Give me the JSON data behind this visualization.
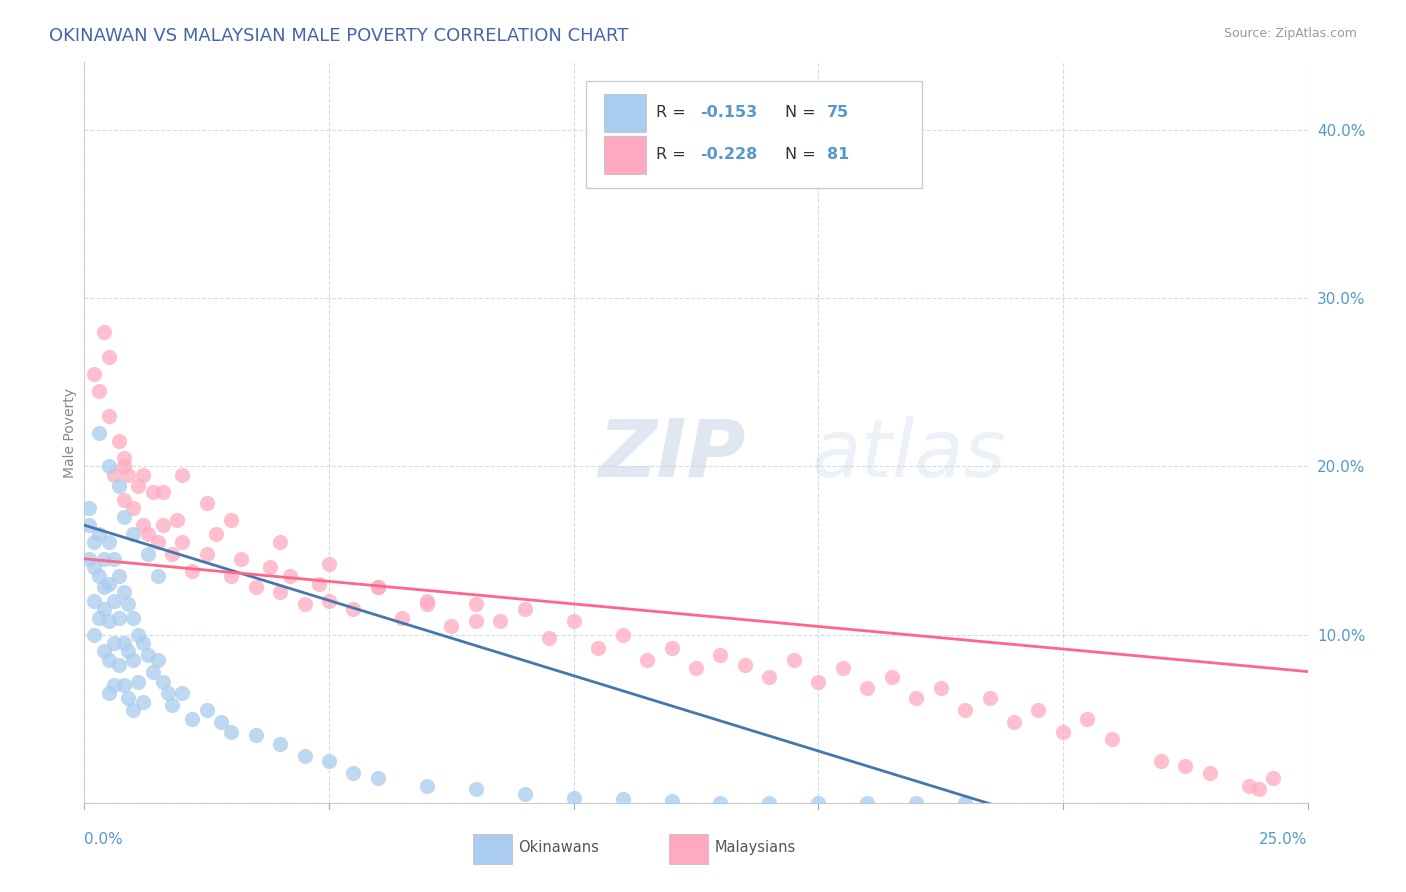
{
  "title": "OKINAWAN VS MALAYSIAN MALE POVERTY CORRELATION CHART",
  "source": "Source: ZipAtlas.com",
  "ylabel": "Male Poverty",
  "xlim": [
    0,
    0.25
  ],
  "ylim": [
    0.0,
    0.44
  ],
  "yticks": [
    0.0,
    0.1,
    0.2,
    0.3,
    0.4
  ],
  "ytick_labels": [
    "",
    "10.0%",
    "20.0%",
    "30.0%",
    "40.0%"
  ],
  "background_color": "#ffffff",
  "grid_color": "#d0dce8",
  "okinawan_color": "#aaccee",
  "okinawan_line_color": "#4477aa",
  "malaysian_color": "#ffaac0",
  "malaysian_line_color": "#ff6688",
  "R_okinawan": -0.153,
  "N_okinawan": 75,
  "R_malaysian": -0.228,
  "N_malaysian": 81,
  "ok_line_x0": 0.0,
  "ok_line_y0": 0.165,
  "ok_line_x1": 0.19,
  "ok_line_y1": -0.005,
  "mal_line_x0": 0.0,
  "mal_line_y0": 0.145,
  "mal_line_x1": 0.25,
  "mal_line_y1": 0.078,
  "okinawan_x": [
    0.001,
    0.001,
    0.001,
    0.002,
    0.002,
    0.002,
    0.002,
    0.003,
    0.003,
    0.003,
    0.004,
    0.004,
    0.004,
    0.004,
    0.005,
    0.005,
    0.005,
    0.005,
    0.005,
    0.006,
    0.006,
    0.006,
    0.006,
    0.007,
    0.007,
    0.007,
    0.008,
    0.008,
    0.008,
    0.009,
    0.009,
    0.009,
    0.01,
    0.01,
    0.01,
    0.011,
    0.011,
    0.012,
    0.012,
    0.013,
    0.014,
    0.015,
    0.016,
    0.017,
    0.018,
    0.02,
    0.022,
    0.025,
    0.028,
    0.03,
    0.035,
    0.04,
    0.045,
    0.05,
    0.055,
    0.06,
    0.07,
    0.08,
    0.09,
    0.1,
    0.11,
    0.12,
    0.13,
    0.14,
    0.15,
    0.16,
    0.17,
    0.18,
    0.003,
    0.005,
    0.007,
    0.008,
    0.01,
    0.013,
    0.015
  ],
  "okinawan_y": [
    0.175,
    0.165,
    0.145,
    0.155,
    0.14,
    0.12,
    0.1,
    0.16,
    0.135,
    0.11,
    0.145,
    0.128,
    0.115,
    0.09,
    0.155,
    0.13,
    0.108,
    0.085,
    0.065,
    0.145,
    0.12,
    0.095,
    0.07,
    0.135,
    0.11,
    0.082,
    0.125,
    0.095,
    0.07,
    0.118,
    0.09,
    0.062,
    0.11,
    0.085,
    0.055,
    0.1,
    0.072,
    0.095,
    0.06,
    0.088,
    0.078,
    0.085,
    0.072,
    0.065,
    0.058,
    0.065,
    0.05,
    0.055,
    0.048,
    0.042,
    0.04,
    0.035,
    0.028,
    0.025,
    0.018,
    0.015,
    0.01,
    0.008,
    0.005,
    0.003,
    0.002,
    0.001,
    0.0,
    0.0,
    0.0,
    0.0,
    0.0,
    0.0,
    0.22,
    0.2,
    0.188,
    0.17,
    0.16,
    0.148,
    0.135
  ],
  "malaysian_x": [
    0.002,
    0.003,
    0.004,
    0.005,
    0.005,
    0.006,
    0.007,
    0.008,
    0.008,
    0.009,
    0.01,
    0.011,
    0.012,
    0.013,
    0.014,
    0.015,
    0.016,
    0.018,
    0.019,
    0.02,
    0.022,
    0.025,
    0.027,
    0.03,
    0.032,
    0.035,
    0.038,
    0.04,
    0.042,
    0.045,
    0.048,
    0.05,
    0.055,
    0.06,
    0.065,
    0.07,
    0.075,
    0.08,
    0.085,
    0.09,
    0.095,
    0.1,
    0.105,
    0.11,
    0.115,
    0.12,
    0.125,
    0.13,
    0.135,
    0.14,
    0.145,
    0.15,
    0.155,
    0.16,
    0.165,
    0.17,
    0.175,
    0.18,
    0.185,
    0.19,
    0.195,
    0.2,
    0.205,
    0.21,
    0.22,
    0.225,
    0.23,
    0.238,
    0.24,
    0.243,
    0.008,
    0.012,
    0.016,
    0.02,
    0.025,
    0.03,
    0.04,
    0.05,
    0.06,
    0.07,
    0.08
  ],
  "malaysian_y": [
    0.255,
    0.245,
    0.28,
    0.23,
    0.265,
    0.195,
    0.215,
    0.18,
    0.2,
    0.195,
    0.175,
    0.188,
    0.165,
    0.16,
    0.185,
    0.155,
    0.165,
    0.148,
    0.168,
    0.155,
    0.138,
    0.148,
    0.16,
    0.135,
    0.145,
    0.128,
    0.14,
    0.125,
    0.135,
    0.118,
    0.13,
    0.12,
    0.115,
    0.128,
    0.11,
    0.12,
    0.105,
    0.118,
    0.108,
    0.115,
    0.098,
    0.108,
    0.092,
    0.1,
    0.085,
    0.092,
    0.08,
    0.088,
    0.082,
    0.075,
    0.085,
    0.072,
    0.08,
    0.068,
    0.075,
    0.062,
    0.068,
    0.055,
    0.062,
    0.048,
    0.055,
    0.042,
    0.05,
    0.038,
    0.025,
    0.022,
    0.018,
    0.01,
    0.008,
    0.015,
    0.205,
    0.195,
    0.185,
    0.195,
    0.178,
    0.168,
    0.155,
    0.142,
    0.128,
    0.118,
    0.108
  ]
}
